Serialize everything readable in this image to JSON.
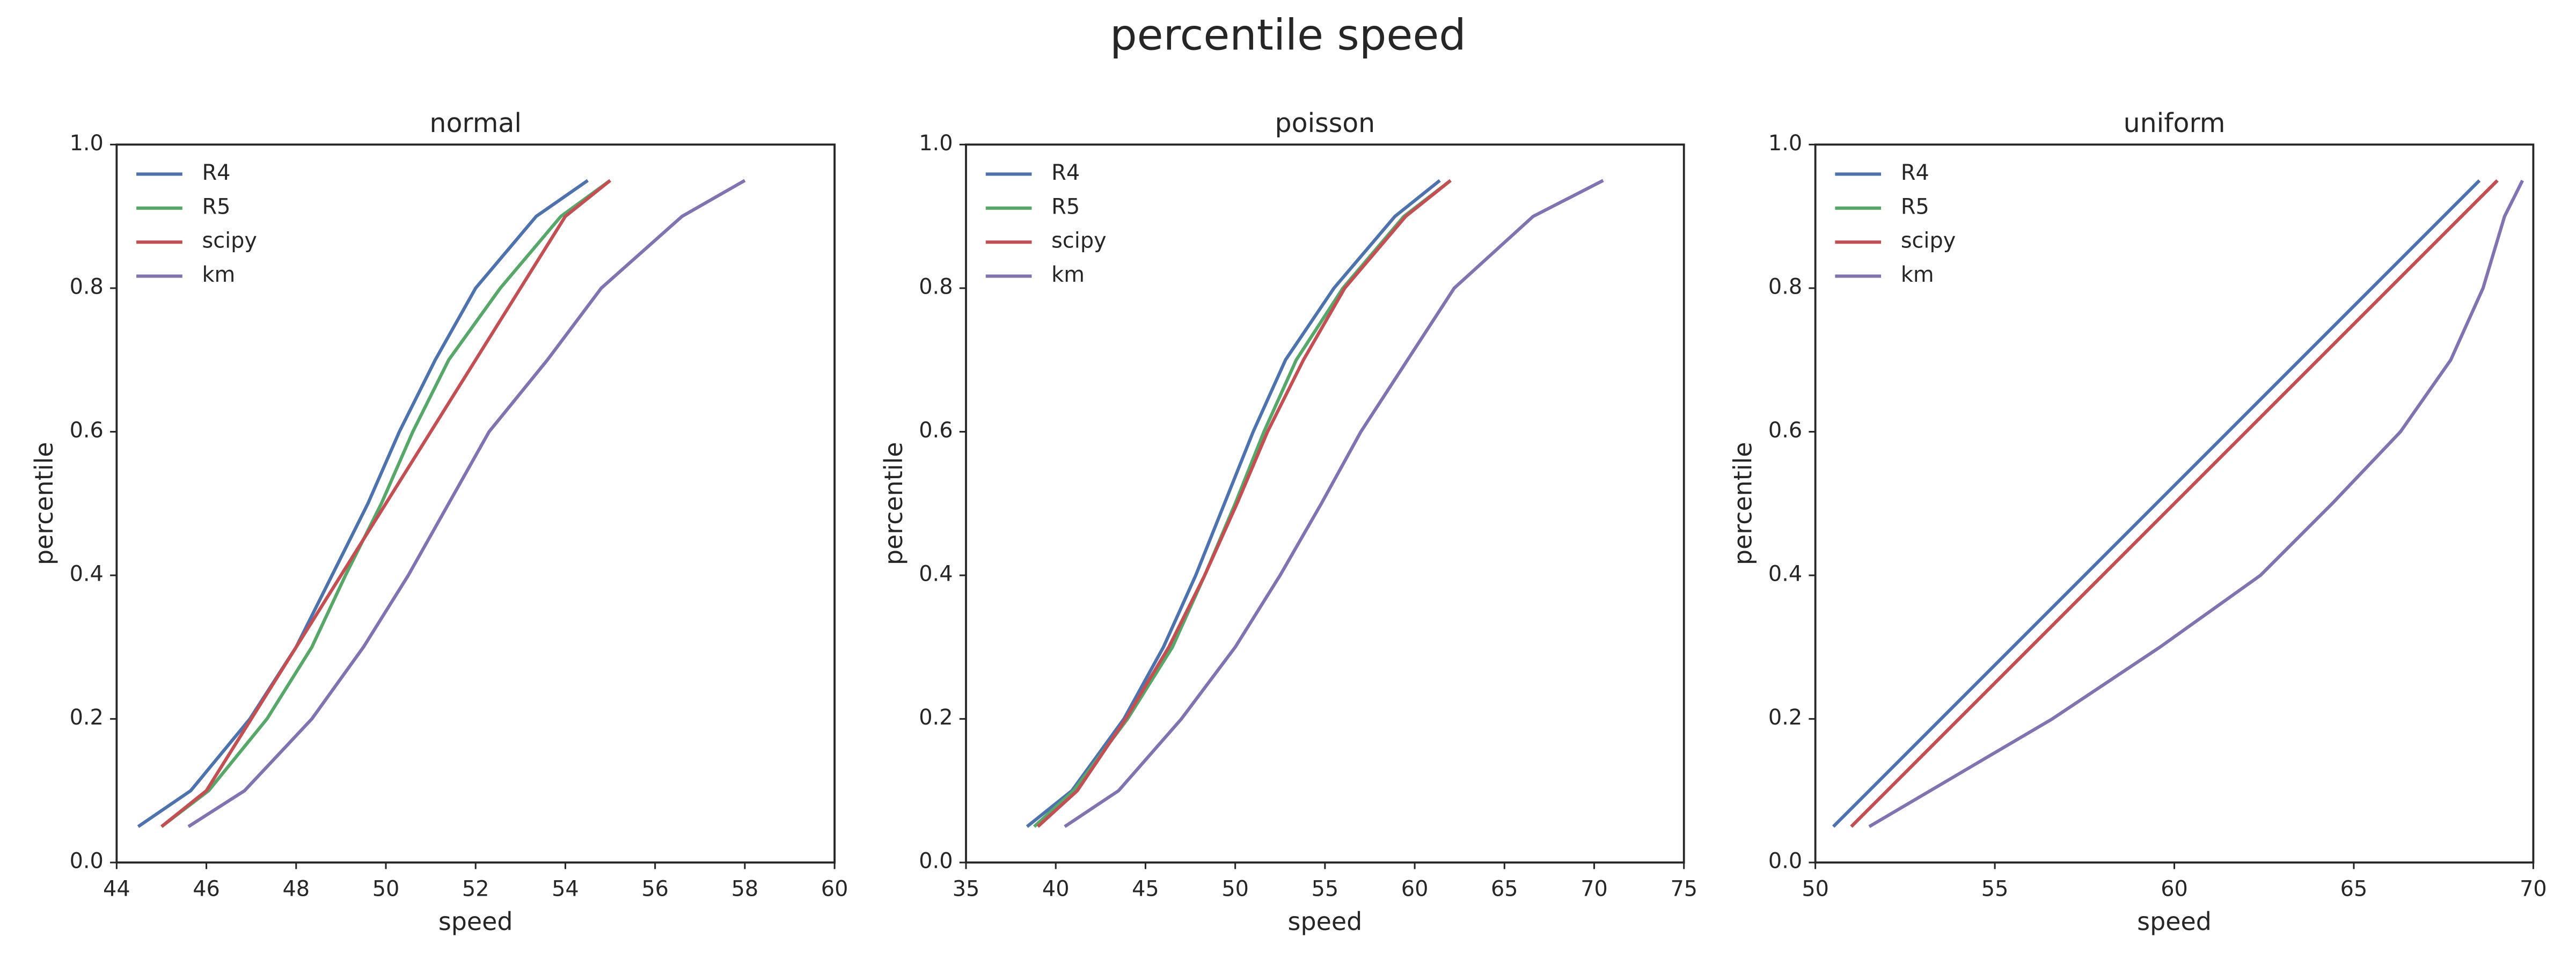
{
  "title": "percentile speed",
  "chart_data": [
    {
      "type": "line",
      "title": "normal",
      "xlabel": "speed",
      "ylabel": "percentile",
      "xlim": [
        44,
        60
      ],
      "ylim": [
        0,
        1
      ],
      "xticks": [
        44,
        46,
        48,
        50,
        52,
        54,
        56,
        58,
        60
      ],
      "yticks": [
        {
          "value": 0,
          "label": "0.0"
        },
        0.2,
        0.4,
        0.6,
        0.8,
        {
          "value": 1,
          "label": "1.0"
        }
      ],
      "legend": "upper left",
      "grid": false,
      "series": [
        {
          "name": "R4",
          "color": "#4c72b0",
          "x": [
            44.48,
            45.65,
            46.97,
            48.0,
            48.8,
            49.6,
            50.3,
            51.1,
            52.0,
            53.35,
            54.5
          ],
          "values": [
            0.05,
            0.1,
            0.2,
            0.3,
            0.4,
            0.5,
            0.6,
            0.7,
            0.8,
            0.9,
            0.95
          ]
        },
        {
          "name": "R5",
          "color": "#55a868",
          "x": [
            45.0,
            46.05,
            47.35,
            48.35,
            49.1,
            49.9,
            50.6,
            51.4,
            52.55,
            53.9,
            55.0
          ],
          "values": [
            0.05,
            0.1,
            0.2,
            0.3,
            0.4,
            0.5,
            0.6,
            0.7,
            0.8,
            0.9,
            0.95
          ]
        },
        {
          "name": "scipy",
          "color": "#c44e52",
          "x": [
            45.0,
            46.0,
            47.0,
            48.0,
            49.0,
            50.0,
            51.0,
            52.0,
            53.0,
            54.0,
            55.0
          ],
          "values": [
            0.05,
            0.1,
            0.2,
            0.3,
            0.4,
            0.5,
            0.6,
            0.7,
            0.8,
            0.9,
            0.95
          ]
        },
        {
          "name": "km",
          "color": "#8172b2",
          "x": [
            45.6,
            46.85,
            48.35,
            49.5,
            50.5,
            51.4,
            52.3,
            53.6,
            54.8,
            56.6,
            58.0
          ],
          "values": [
            0.05,
            0.1,
            0.2,
            0.3,
            0.4,
            0.5,
            0.6,
            0.7,
            0.8,
            0.9,
            0.95
          ]
        }
      ]
    },
    {
      "type": "line",
      "title": "poisson",
      "xlabel": "speed",
      "ylabel": "percentile",
      "xlim": [
        35,
        75
      ],
      "ylim": [
        0,
        1
      ],
      "xticks": [
        35,
        40,
        45,
        50,
        55,
        60,
        65,
        70,
        75
      ],
      "yticks": [
        {
          "value": 0,
          "label": "0.0"
        },
        0.2,
        0.4,
        0.6,
        0.8,
        {
          "value": 1,
          "label": "1.0"
        }
      ],
      "legend": "upper left",
      "grid": false,
      "series": [
        {
          "name": "R4",
          "color": "#4c72b0",
          "x": [
            38.4,
            40.9,
            43.8,
            46.0,
            47.8,
            49.4,
            51.0,
            52.8,
            55.5,
            58.9,
            61.4
          ],
          "values": [
            0.05,
            0.1,
            0.2,
            0.3,
            0.4,
            0.5,
            0.6,
            0.7,
            0.8,
            0.9,
            0.95
          ]
        },
        {
          "name": "R5",
          "color": "#55a868",
          "x": [
            38.8,
            41.0,
            44.0,
            46.5,
            48.3,
            50.0,
            51.6,
            53.4,
            56.0,
            59.4,
            62.0
          ],
          "values": [
            0.05,
            0.1,
            0.2,
            0.3,
            0.4,
            0.5,
            0.6,
            0.7,
            0.8,
            0.9,
            0.95
          ]
        },
        {
          "name": "scipy",
          "color": "#c44e52",
          "x": [
            39.0,
            41.2,
            43.9,
            46.3,
            48.3,
            50.1,
            51.8,
            53.8,
            56.1,
            59.5,
            62.0
          ],
          "values": [
            0.05,
            0.1,
            0.2,
            0.3,
            0.4,
            0.5,
            0.6,
            0.7,
            0.8,
            0.9,
            0.95
          ]
        },
        {
          "name": "km",
          "color": "#8172b2",
          "x": [
            40.5,
            43.5,
            47.0,
            50.0,
            52.5,
            54.8,
            57.0,
            59.6,
            62.2,
            66.6,
            70.5
          ],
          "values": [
            0.05,
            0.1,
            0.2,
            0.3,
            0.4,
            0.5,
            0.6,
            0.7,
            0.8,
            0.9,
            0.95
          ]
        }
      ]
    },
    {
      "type": "line",
      "title": "uniform",
      "xlabel": "speed",
      "ylabel": "percentile",
      "xlim": [
        50,
        70
      ],
      "ylim": [
        0,
        1
      ],
      "xticks": [
        50,
        55,
        60,
        65,
        70
      ],
      "yticks": [
        {
          "value": 0,
          "label": "0.0"
        },
        0.2,
        0.4,
        0.6,
        0.8,
        {
          "value": 1,
          "label": "1.0"
        }
      ],
      "legend": "upper left",
      "grid": false,
      "series": [
        {
          "name": "R4",
          "color": "#4c72b0",
          "x": [
            50.5,
            51.5,
            53.5,
            55.5,
            57.5,
            59.5,
            61.5,
            63.5,
            65.5,
            67.5,
            68.5
          ],
          "values": [
            0.05,
            0.1,
            0.2,
            0.3,
            0.4,
            0.5,
            0.6,
            0.7,
            0.8,
            0.9,
            0.95
          ]
        },
        {
          "name": "R5",
          "color": "#55a868",
          "x": [
            51.0,
            52.0,
            54.0,
            56.0,
            58.0,
            60.0,
            62.0,
            64.0,
            66.0,
            68.0,
            69.0
          ],
          "values": [
            0.05,
            0.1,
            0.2,
            0.3,
            0.4,
            0.5,
            0.6,
            0.7,
            0.8,
            0.9,
            0.95
          ]
        },
        {
          "name": "scipy",
          "color": "#c44e52",
          "x": [
            51.0,
            52.0,
            54.0,
            56.0,
            58.0,
            60.0,
            62.0,
            64.0,
            66.0,
            68.0,
            69.0
          ],
          "values": [
            0.05,
            0.1,
            0.2,
            0.3,
            0.4,
            0.5,
            0.6,
            0.7,
            0.8,
            0.9,
            0.95
          ]
        },
        {
          "name": "km",
          "color": "#8172b2",
          "x": [
            51.5,
            53.2,
            56.6,
            59.6,
            62.4,
            64.4,
            66.3,
            67.7,
            68.6,
            69.2,
            69.7
          ],
          "values": [
            0.05,
            0.1,
            0.2,
            0.3,
            0.4,
            0.5,
            0.6,
            0.7,
            0.8,
            0.9,
            0.95
          ]
        }
      ]
    }
  ]
}
